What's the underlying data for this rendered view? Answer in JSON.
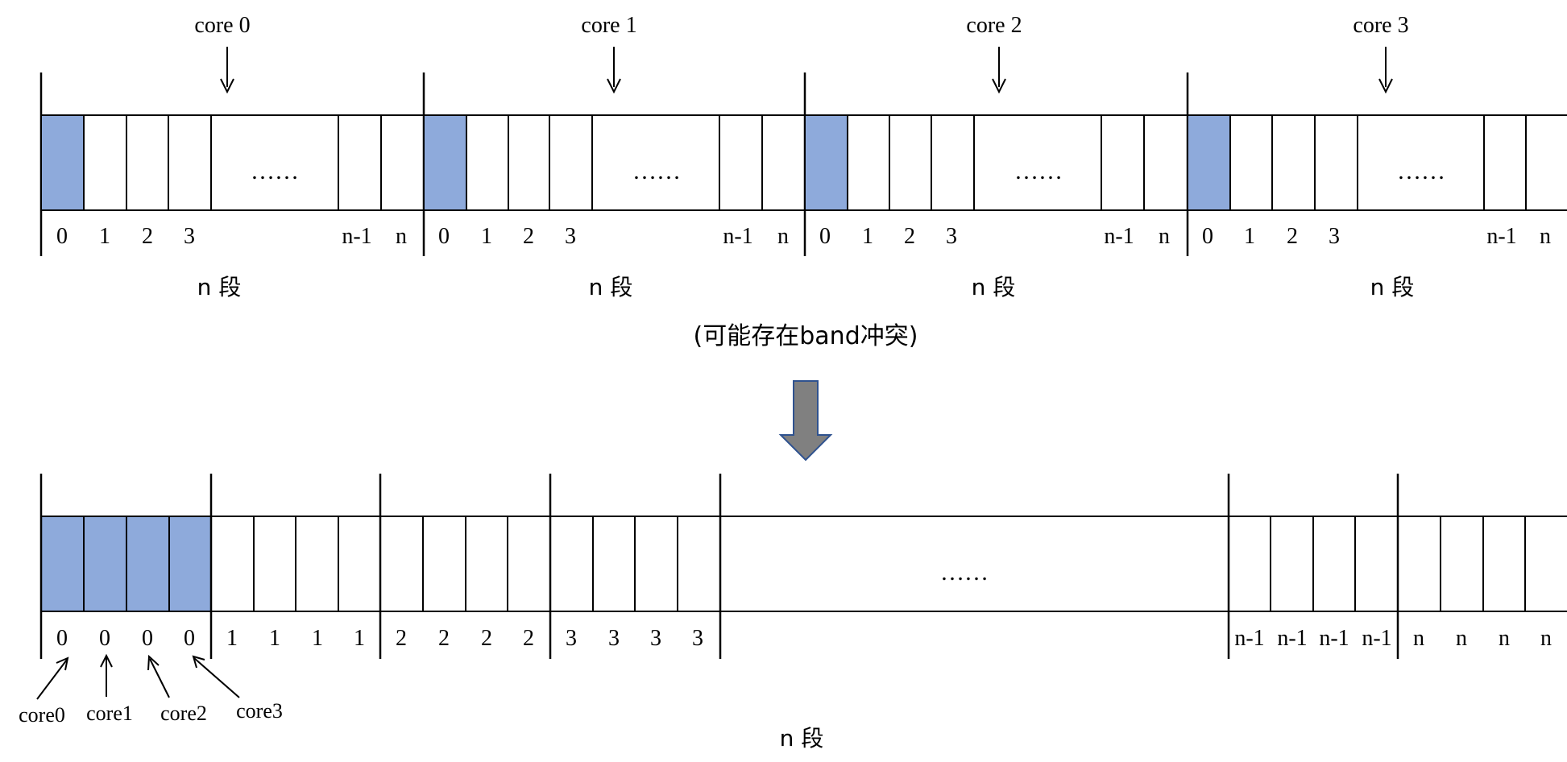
{
  "top": {
    "blocks": [
      {
        "core_label": "core 0",
        "cell_labels": [
          "0",
          "1",
          "2",
          "3",
          "n-1",
          "n"
        ],
        "ellipsis": "……",
        "segment_label": "n 段"
      },
      {
        "core_label": "core 1",
        "cell_labels": [
          "0",
          "1",
          "2",
          "3",
          "n-1",
          "n"
        ],
        "ellipsis": "……",
        "segment_label": "n 段"
      },
      {
        "core_label": "core 2",
        "cell_labels": [
          "0",
          "1",
          "2",
          "3",
          "n-1",
          "n"
        ],
        "ellipsis": "……",
        "segment_label": "n 段"
      },
      {
        "core_label": "core 3",
        "cell_labels": [
          "0",
          "1",
          "2",
          "3",
          "n-1",
          "n"
        ],
        "ellipsis": "……",
        "segment_label": "n 段"
      }
    ],
    "note": "(可能存在band冲突)"
  },
  "bottom": {
    "groups": [
      {
        "labels": [
          "0",
          "0",
          "0",
          "0"
        ],
        "highlighted": true
      },
      {
        "labels": [
          "1",
          "1",
          "1",
          "1"
        ],
        "highlighted": false
      },
      {
        "labels": [
          "2",
          "2",
          "2",
          "2"
        ],
        "highlighted": false
      },
      {
        "labels": [
          "3",
          "3",
          "3",
          "3"
        ],
        "highlighted": false
      },
      {
        "labels": [
          "n-1",
          "n-1",
          "n-1",
          "n-1"
        ],
        "highlighted": false
      },
      {
        "labels": [
          "n",
          "n",
          "n",
          "n"
        ],
        "highlighted": false
      }
    ],
    "ellipsis": "……",
    "core_callouts": [
      "core0",
      "core1",
      "core2",
      "core3"
    ],
    "segment_label": "n 段"
  },
  "colors": {
    "highlight_fill": "#8eaadb",
    "arrow_fill": "#808080",
    "arrow_stroke": "#2f528f",
    "line": "#000000"
  }
}
